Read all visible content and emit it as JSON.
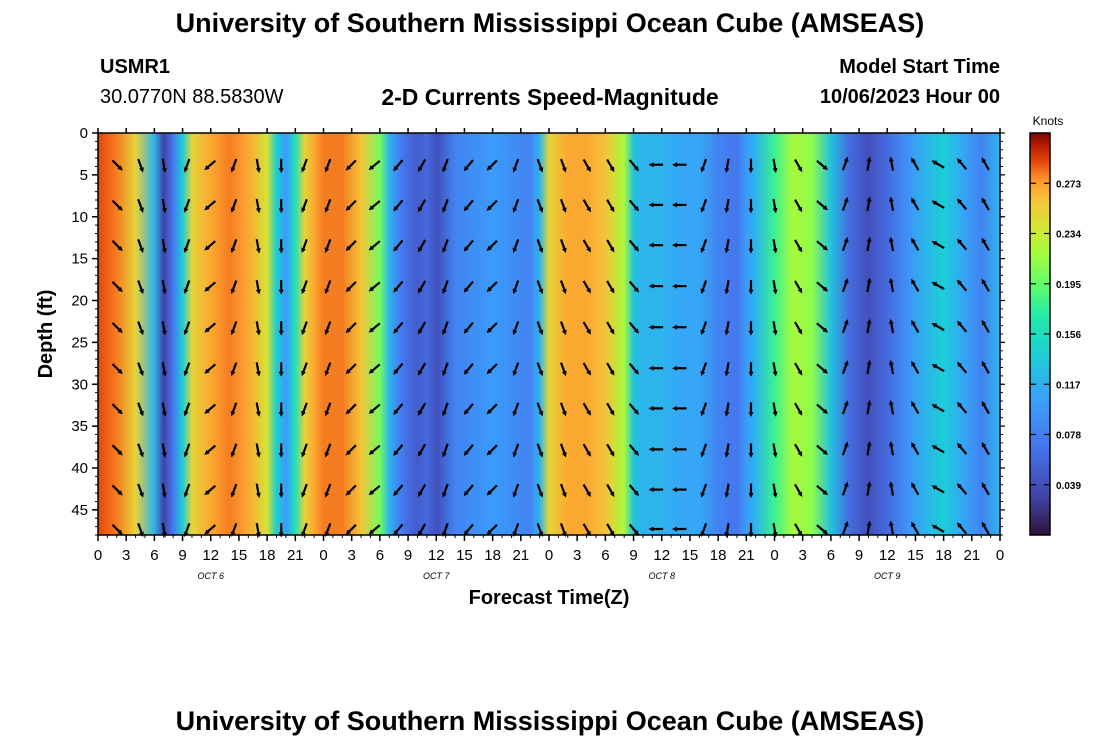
{
  "header": {
    "title": "University of Southern Mississippi Ocean Cube (AMSEAS)",
    "station": "USMR1",
    "coords": "30.0770N  88.5830W",
    "plot_title": "2-D Currents Speed-Magnitude",
    "start_label": "Model Start Time",
    "start_value": "10/06/2023 Hour 00"
  },
  "footer": {
    "title": "University of Southern Mississippi Ocean Cube (AMSEAS)"
  },
  "chart_data": {
    "type": "heatmap",
    "title": "2-D Currents Speed-Magnitude",
    "xlabel": "Forecast Time(Z)",
    "ylabel": "Depth (ft)",
    "x_tick_labels": [
      "0",
      "3",
      "6",
      "9",
      "12",
      "15",
      "18",
      "21",
      "0",
      "3",
      "6",
      "9",
      "12",
      "15",
      "18",
      "21",
      "0",
      "3",
      "6",
      "9",
      "12",
      "15",
      "18",
      "21",
      "0",
      "3",
      "6",
      "9",
      "12",
      "15",
      "18",
      "21",
      "0"
    ],
    "day_labels": [
      {
        "label": "OCT 6",
        "hour": 12
      },
      {
        "label": "OCT 7",
        "hour": 36
      },
      {
        "label": "OCT 8",
        "hour": 60
      },
      {
        "label": "OCT 9",
        "hour": 84
      }
    ],
    "xlim": [
      0,
      96
    ],
    "y_ticks": [
      0,
      5,
      10,
      15,
      20,
      25,
      30,
      35,
      40,
      45
    ],
    "ylim": [
      0,
      48
    ],
    "colorbar": {
      "label": "Knots",
      "ticks": [
        "0.273",
        "0.234",
        "0.195",
        "0.156",
        "0.117",
        "0.078",
        "0.039"
      ],
      "range": [
        0.0,
        0.312
      ]
    },
    "speed_profile": {
      "hours": [
        0,
        2,
        4,
        6,
        7,
        8,
        9,
        10,
        12,
        14,
        16,
        18,
        19,
        20,
        21,
        22,
        23,
        24,
        26,
        28,
        30,
        31,
        32,
        33,
        34,
        35,
        36,
        38,
        40,
        42,
        44,
        46,
        47,
        48,
        50,
        52,
        54,
        56,
        57,
        58,
        60,
        62,
        64,
        66,
        68,
        69,
        70,
        72,
        74,
        76,
        78,
        80,
        82,
        84,
        86,
        88,
        90,
        92,
        94,
        96
      ],
      "speed_knots": [
        0.29,
        0.28,
        0.25,
        0.12,
        0.03,
        0.07,
        0.14,
        0.25,
        0.27,
        0.28,
        0.27,
        0.24,
        0.14,
        0.1,
        0.16,
        0.25,
        0.27,
        0.28,
        0.28,
        0.26,
        0.2,
        0.12,
        0.08,
        0.06,
        0.05,
        0.06,
        0.04,
        0.08,
        0.09,
        0.1,
        0.09,
        0.08,
        0.12,
        0.25,
        0.27,
        0.27,
        0.26,
        0.22,
        0.13,
        0.12,
        0.12,
        0.11,
        0.11,
        0.08,
        0.07,
        0.1,
        0.12,
        0.18,
        0.22,
        0.21,
        0.13,
        0.06,
        0.04,
        0.06,
        0.09,
        0.12,
        0.14,
        0.11,
        0.08,
        0.12
      ]
    },
    "vector_rows_depth_ft": [
      4.5,
      9.3,
      14.1,
      19.0,
      23.9,
      28.8,
      33.6,
      38.5,
      43.3,
      48
    ],
    "vector_columns_hour": [
      2,
      4.5,
      7,
      9.5,
      12,
      14.5,
      17,
      19.5,
      22,
      24.5,
      27,
      29.5,
      32,
      34.5,
      37,
      39.5,
      42,
      44.5,
      47,
      49.5,
      52,
      54.5,
      57,
      59.5,
      62,
      64.5,
      67,
      69.5,
      72,
      74.5,
      77,
      79.5,
      82,
      84.5,
      87,
      89.5,
      92,
      94.5
    ],
    "vector_direction_deg": [
      135,
      160,
      170,
      200,
      230,
      200,
      170,
      180,
      200,
      200,
      225,
      230,
      220,
      210,
      200,
      220,
      225,
      200,
      160,
      160,
      150,
      150,
      140,
      270,
      270,
      200,
      190,
      180,
      170,
      150,
      130,
      20,
      10,
      350,
      330,
      300,
      320,
      330
    ]
  }
}
